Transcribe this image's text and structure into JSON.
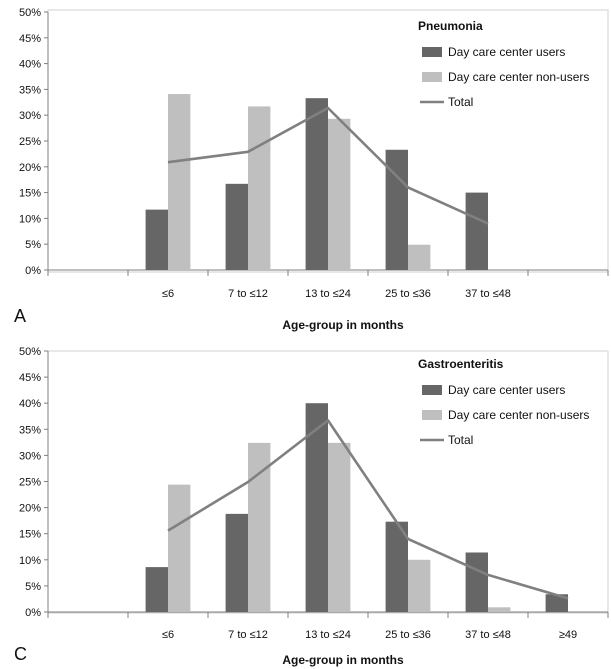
{
  "chart_data": [
    {
      "type": "bar",
      "panel_letter": "A",
      "legend_title": "Pneumonia",
      "xlabel": "Age-group in months",
      "ylabel": "",
      "ylim": [
        0,
        50
      ],
      "yticks": [
        "0%",
        "5%",
        "10%",
        "15%",
        "20%",
        "25%",
        "30%",
        "35%",
        "40%",
        "45%",
        "50%"
      ],
      "categories": [
        "",
        "≤6",
        "7 to ≤12",
        "13 to ≤24",
        "25 to ≤36",
        "37 to ≤48",
        ""
      ],
      "series": [
        {
          "name": "Day care center users",
          "type": "bar",
          "color": "#666666",
          "values": [
            null,
            11.7,
            16.7,
            33.3,
            23.3,
            15.0,
            null
          ]
        },
        {
          "name": "Day care center non-users",
          "type": "bar",
          "color": "#bfbfbf",
          "values": [
            null,
            34.1,
            31.7,
            29.3,
            4.9,
            null,
            null
          ]
        },
        {
          "name": "Total",
          "type": "line",
          "color": "#808080",
          "values": [
            null,
            20.9,
            22.9,
            31.4,
            16.0,
            9.0,
            null
          ]
        }
      ],
      "legend_position": "top-right",
      "grid": false
    },
    {
      "type": "bar",
      "panel_letter": "C",
      "legend_title": "Gastroenteritis",
      "xlabel": "Age-group in months",
      "ylabel": "",
      "ylim": [
        0,
        50
      ],
      "yticks": [
        "0%",
        "5%",
        "10%",
        "15%",
        "20%",
        "25%",
        "30%",
        "35%",
        "40%",
        "45%",
        "50%"
      ],
      "categories": [
        "",
        "≤6",
        "7 to ≤12",
        "13 to ≤24",
        "25 to ≤36",
        "37 to ≤48",
        "≥49"
      ],
      "series": [
        {
          "name": "Day care center users",
          "type": "bar",
          "color": "#666666",
          "values": [
            null,
            8.6,
            18.8,
            40.0,
            17.3,
            11.4,
            3.4
          ]
        },
        {
          "name": "Day care center non-users",
          "type": "bar",
          "color": "#bfbfbf",
          "values": [
            null,
            24.4,
            32.4,
            32.4,
            10.0,
            0.9,
            null
          ]
        },
        {
          "name": "Total",
          "type": "line",
          "color": "#808080",
          "values": [
            null,
            15.6,
            24.9,
            36.7,
            14.0,
            7.1,
            2.6
          ]
        }
      ],
      "legend_position": "top-right",
      "grid": false
    }
  ]
}
